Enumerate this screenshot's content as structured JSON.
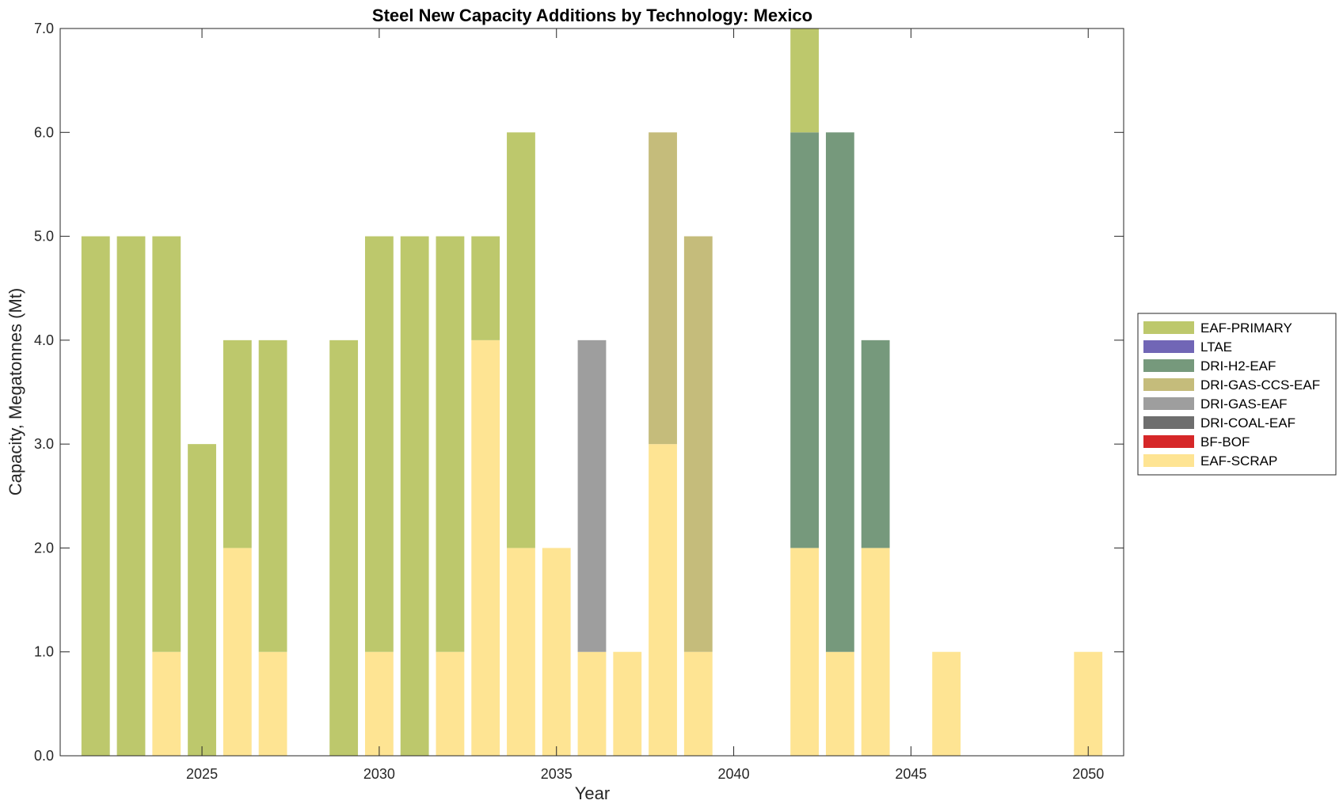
{
  "chart_data": {
    "type": "bar",
    "stacked": true,
    "title": "Steel New Capacity Additions by Technology: Mexico",
    "xlabel": "Year",
    "ylabel": "Capacity, Megatonnes (Mt)",
    "xlim": [
      2021,
      2051
    ],
    "ylim": [
      0,
      7
    ],
    "x_ticks": [
      2025,
      2030,
      2035,
      2040,
      2045,
      2050
    ],
    "x_tick_labels": [
      "2025",
      "2030",
      "2035",
      "2040",
      "2045",
      "2050"
    ],
    "y_ticks": [
      0,
      1,
      2,
      3,
      4,
      5,
      6,
      7
    ],
    "y_tick_labels": [
      "0.0",
      "1.0",
      "2.0",
      "3.0",
      "4.0",
      "5.0",
      "6.0",
      "7.0"
    ],
    "grid": false,
    "legend_position": "outside-right",
    "x": [
      2022,
      2023,
      2024,
      2025,
      2026,
      2027,
      2028,
      2029,
      2030,
      2031,
      2032,
      2033,
      2034,
      2035,
      2036,
      2037,
      2038,
      2039,
      2040,
      2041,
      2042,
      2043,
      2044,
      2045,
      2046,
      2047,
      2048,
      2049,
      2050
    ],
    "series": [
      {
        "name": "EAF-SCRAP",
        "color": "#fee493",
        "values": [
          0,
          0,
          1,
          0,
          2,
          1,
          0,
          0,
          1,
          0,
          1,
          4,
          2,
          2,
          1,
          1,
          3,
          1,
          0,
          0,
          2,
          1,
          2,
          0,
          1,
          0,
          0,
          0,
          1
        ]
      },
      {
        "name": "BF-BOF",
        "color": "#d62728",
        "values": [
          0,
          0,
          0,
          0,
          0,
          0,
          0,
          0,
          0,
          0,
          0,
          0,
          0,
          0,
          0,
          0,
          0,
          0,
          0,
          0,
          0,
          0,
          0,
          0,
          0,
          0,
          0,
          0,
          0
        ]
      },
      {
        "name": "DRI-COAL-EAF",
        "color": "#6e6e6e",
        "values": [
          0,
          0,
          0,
          0,
          0,
          0,
          0,
          0,
          0,
          0,
          0,
          0,
          0,
          0,
          0,
          0,
          0,
          0,
          0,
          0,
          0,
          0,
          0,
          0,
          0,
          0,
          0,
          0,
          0
        ]
      },
      {
        "name": "DRI-GAS-EAF",
        "color": "#9e9e9e",
        "values": [
          0,
          0,
          0,
          0,
          0,
          0,
          0,
          0,
          0,
          0,
          0,
          0,
          0,
          0,
          3,
          0,
          0,
          0,
          0,
          0,
          0,
          0,
          0,
          0,
          0,
          0,
          0,
          0,
          0
        ]
      },
      {
        "name": "DRI-GAS-CCS-EAF",
        "color": "#c5bc7b",
        "values": [
          0,
          0,
          0,
          0,
          0,
          0,
          0,
          0,
          0,
          0,
          0,
          0,
          0,
          0,
          0,
          0,
          3,
          4,
          0,
          0,
          0,
          0,
          0,
          0,
          0,
          0,
          0,
          0,
          0
        ]
      },
      {
        "name": "DRI-H2-EAF",
        "color": "#76997c",
        "values": [
          0,
          0,
          0,
          0,
          0,
          0,
          0,
          0,
          0,
          0,
          0,
          0,
          0,
          0,
          0,
          0,
          0,
          0,
          0,
          0,
          4,
          5,
          2,
          0,
          0,
          0,
          0,
          0,
          0
        ]
      },
      {
        "name": "LTAE",
        "color": "#7166b6",
        "values": [
          0,
          0,
          0,
          0,
          0,
          0,
          0,
          0,
          0,
          0,
          0,
          0,
          0,
          0,
          0,
          0,
          0,
          0,
          0,
          0,
          0,
          0,
          0,
          0,
          0,
          0,
          0,
          0,
          0
        ]
      },
      {
        "name": "EAF-PRIMARY",
        "color": "#bdc86c",
        "values": [
          5,
          5,
          4,
          3,
          2,
          3,
          0,
          4,
          4,
          5,
          4,
          1,
          4,
          0,
          0,
          0,
          0,
          0,
          0,
          0,
          1,
          0,
          0,
          0,
          0,
          0,
          0,
          0,
          0
        ]
      }
    ],
    "legend_order": [
      "EAF-PRIMARY",
      "LTAE",
      "DRI-H2-EAF",
      "DRI-GAS-CCS-EAF",
      "DRI-GAS-EAF",
      "DRI-COAL-EAF",
      "BF-BOF",
      "EAF-SCRAP"
    ]
  }
}
